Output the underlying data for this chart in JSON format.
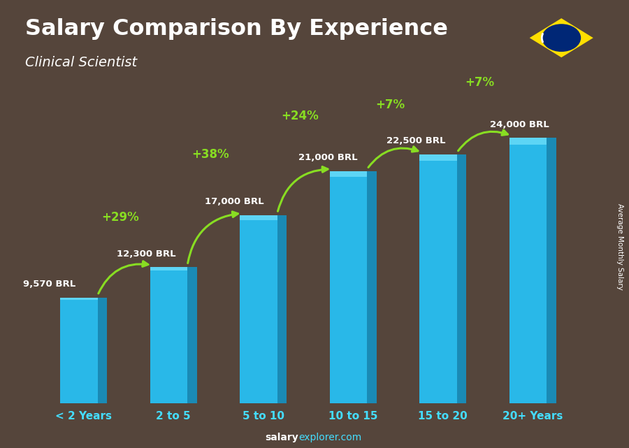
{
  "title": "Salary Comparison By Experience",
  "subtitle": "Clinical Scientist",
  "categories": [
    "< 2 Years",
    "2 to 5",
    "5 to 10",
    "10 to 15",
    "15 to 20",
    "20+ Years"
  ],
  "values": [
    9570,
    12300,
    17000,
    21000,
    22500,
    24000
  ],
  "labels": [
    "9,570 BRL",
    "12,300 BRL",
    "17,000 BRL",
    "21,000 BRL",
    "22,500 BRL",
    "24,000 BRL"
  ],
  "pct_changes": [
    "+29%",
    "+38%",
    "+24%",
    "+7%",
    "+7%"
  ],
  "bar_color_main": "#29b8e8",
  "bar_color_right": "#1a8ab5",
  "bar_color_top": "#5dd5f5",
  "pct_color": "#88dd22",
  "title_color": "#ffffff",
  "subtitle_color": "#ffffff",
  "label_color": "#ffffff",
  "bg_color": "#8a7060",
  "xticklabel_color": "#44ddff",
  "ylabel": "Average Monthly Salary",
  "footer_salary": "salary",
  "footer_explorer": "explorer.com",
  "footer_color_salary": "#ffffff",
  "footer_color_explorer": "#44ddff",
  "ylim": [
    0,
    30000
  ],
  "figsize": [
    9.0,
    6.41
  ],
  "dpi": 100
}
